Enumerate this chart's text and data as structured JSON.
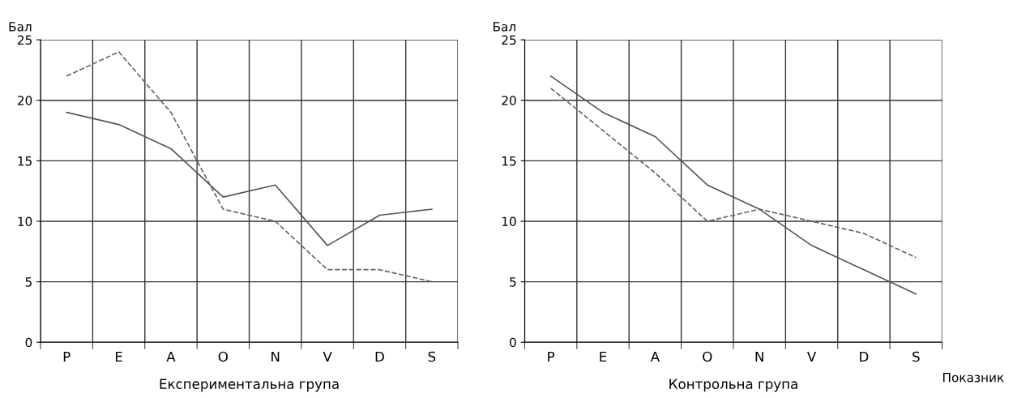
{
  "chart_data": [
    {
      "type": "line",
      "ylabel": "Бал",
      "categories": [
        "P",
        "E",
        "A",
        "O",
        "N",
        "V",
        "D",
        "S"
      ],
      "ylim": [
        0,
        25
      ],
      "yticks": [
        0,
        5,
        10,
        15,
        20,
        25
      ],
      "grid": true,
      "annotations": [
        "Експериментальна група"
      ],
      "series": [
        {
          "color": "#555555",
          "line_style": "solid",
          "values": [
            19,
            18,
            16,
            12,
            13,
            8,
            10.5,
            11
          ]
        },
        {
          "color": "#666666",
          "line_style": "dashed",
          "values": [
            22,
            24,
            19,
            11,
            10,
            6,
            6,
            5
          ]
        }
      ]
    },
    {
      "type": "line",
      "ylabel": "Бал",
      "xlabel": "Показник",
      "categories": [
        "P",
        "E",
        "A",
        "O",
        "N",
        "V",
        "D",
        "S"
      ],
      "ylim": [
        0,
        25
      ],
      "yticks": [
        0,
        5,
        10,
        15,
        20,
        25
      ],
      "grid": true,
      "annotations": [
        "Контрольна група"
      ],
      "series": [
        {
          "color": "#555555",
          "line_style": "solid",
          "values": [
            22,
            19,
            17,
            13,
            11,
            8,
            6,
            4
          ]
        },
        {
          "color": "#666666",
          "line_style": "dashed",
          "values": [
            21,
            17.5,
            14,
            10,
            11,
            10,
            9,
            7
          ]
        }
      ]
    }
  ]
}
